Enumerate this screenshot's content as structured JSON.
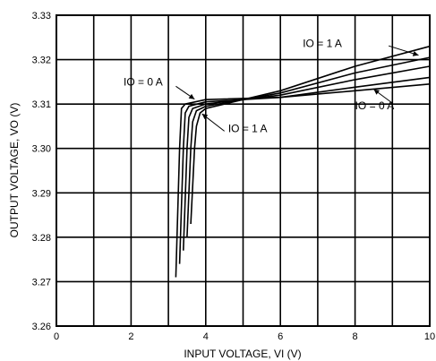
{
  "chart_data": {
    "type": "line",
    "xlabel": "INPUT VOLTAGE, VI (V)",
    "ylabel": "OUTPUT VOLTAGE, VO (V)",
    "xlim": [
      0,
      10
    ],
    "ylim": [
      3.26,
      3.33
    ],
    "xticks": [
      "0",
      "2",
      "4",
      "6",
      "8",
      "10"
    ],
    "yticks": [
      "3.26",
      "3.27",
      "3.28",
      "3.29",
      "3.30",
      "3.31",
      "3.32",
      "3.33"
    ],
    "grid": true,
    "series": [
      {
        "values_x": [
          3.2,
          3.3,
          3.35,
          3.45,
          4.0,
          6.0,
          8.0,
          10.0
        ],
        "values_y": [
          3.271,
          3.3,
          3.309,
          3.31,
          3.311,
          3.3115,
          3.313,
          3.3145
        ]
      },
      {
        "values_x": [
          3.3,
          3.4,
          3.45,
          3.55,
          4.0,
          6.0,
          8.0,
          10.0
        ],
        "values_y": [
          3.274,
          3.3,
          3.308,
          3.3095,
          3.3105,
          3.3115,
          3.3138,
          3.316
        ]
      },
      {
        "values_x": [
          3.4,
          3.5,
          3.55,
          3.65,
          4.0,
          6.0,
          8.0,
          10.0
        ],
        "values_y": [
          3.277,
          3.3,
          3.307,
          3.309,
          3.31,
          3.312,
          3.3155,
          3.3185
        ]
      },
      {
        "values_x": [
          3.5,
          3.6,
          3.65,
          3.75,
          4.0,
          6.0,
          8.0,
          10.0
        ],
        "values_y": [
          3.28,
          3.3,
          3.306,
          3.3085,
          3.3095,
          3.3125,
          3.317,
          3.3205
        ]
      },
      {
        "values_x": [
          3.6,
          3.7,
          3.75,
          3.85,
          4.0,
          6.0,
          8.0,
          10.0
        ],
        "values_y": [
          3.283,
          3.3,
          3.305,
          3.308,
          3.309,
          3.313,
          3.3185,
          3.323
        ]
      }
    ],
    "annotations": [
      {
        "text": "IO = 1 A",
        "x": 6.6,
        "y": 3.3228
      },
      {
        "text": "IO = 0 A",
        "x": 1.8,
        "y": 3.3142
      },
      {
        "text": "IO = 1 A",
        "x": 4.6,
        "y": 3.3037
      },
      {
        "text": "IO = 0 A",
        "x": 8.0,
        "y": 3.3088
      }
    ]
  }
}
